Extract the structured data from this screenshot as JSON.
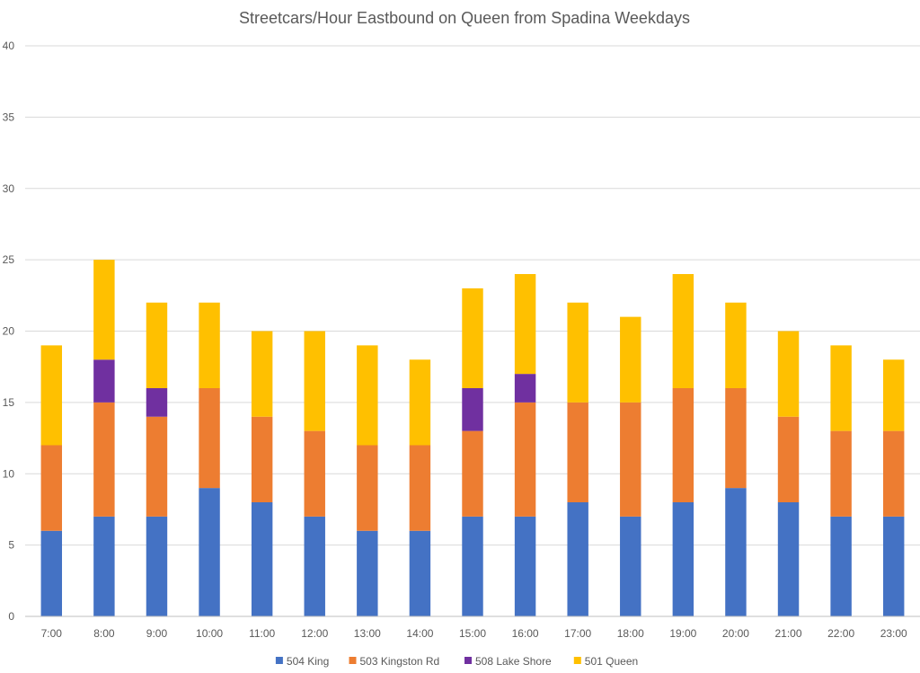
{
  "chart_data": {
    "type": "bar",
    "stacked": true,
    "title": "Streetcars/Hour Eastbound on Queen from Spadina Weekdays",
    "xlabel": "",
    "ylabel": "",
    "ylim": [
      0,
      40
    ],
    "yticks": [
      0,
      5,
      10,
      15,
      20,
      25,
      30,
      35,
      40
    ],
    "grid": true,
    "legend_position": "bottom",
    "categories": [
      "7:00",
      "8:00",
      "9:00",
      "10:00",
      "11:00",
      "12:00",
      "13:00",
      "14:00",
      "15:00",
      "16:00",
      "17:00",
      "18:00",
      "19:00",
      "20:00",
      "21:00",
      "22:00",
      "23:00"
    ],
    "series": [
      {
        "name": "504 King",
        "color": "#4472C4",
        "values": [
          6,
          7,
          7,
          9,
          8,
          7,
          6,
          6,
          7,
          7,
          8,
          7,
          8,
          9,
          8,
          7,
          7
        ]
      },
      {
        "name": "503 Kingston Rd",
        "color": "#ED7D31",
        "values": [
          6,
          8,
          7,
          7,
          6,
          6,
          6,
          6,
          6,
          8,
          7,
          8,
          8,
          7,
          6,
          6,
          6
        ]
      },
      {
        "name": "508 Lake Shore",
        "color": "#7030A0",
        "values": [
          0,
          3,
          2,
          0,
          0,
          0,
          0,
          0,
          3,
          2,
          0,
          0,
          0,
          0,
          0,
          0,
          0
        ]
      },
      {
        "name": "501 Queen",
        "color": "#FFC000",
        "values": [
          7,
          7,
          6,
          6,
          6,
          7,
          7,
          6,
          7,
          7,
          7,
          6,
          8,
          6,
          6,
          6,
          5
        ]
      }
    ]
  }
}
